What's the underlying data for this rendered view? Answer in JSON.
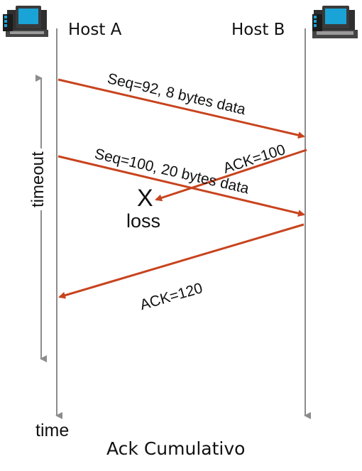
{
  "diagram": {
    "host_a_label": "Host A",
    "host_b_label": "Host B",
    "timeout_label": "timeout",
    "time_label": "time",
    "loss_marker": "X",
    "loss_label": "loss",
    "caption": "Ack Cumulativo",
    "messages": [
      {
        "id": "seq92",
        "label": "Seq=92, 8 bytes data",
        "from": "Host A",
        "to": "Host B",
        "status": "delivered"
      },
      {
        "id": "ack100",
        "label": "ACK=100",
        "from": "Host B",
        "to": "Host A",
        "status": "lost"
      },
      {
        "id": "seq100",
        "label": "Seq=100, 20 bytes data",
        "from": "Host A",
        "to": "Host B",
        "status": "delivered"
      },
      {
        "id": "ack120",
        "label": "ACK=120",
        "from": "Host B",
        "to": "Host A",
        "status": "delivered"
      }
    ],
    "colors": {
      "arrow": "#c8431d",
      "timeline": "#8c8c8c",
      "text": "#111111",
      "computer_screen": "#1aa3d6",
      "computer_body": "#3a3a3a"
    }
  }
}
